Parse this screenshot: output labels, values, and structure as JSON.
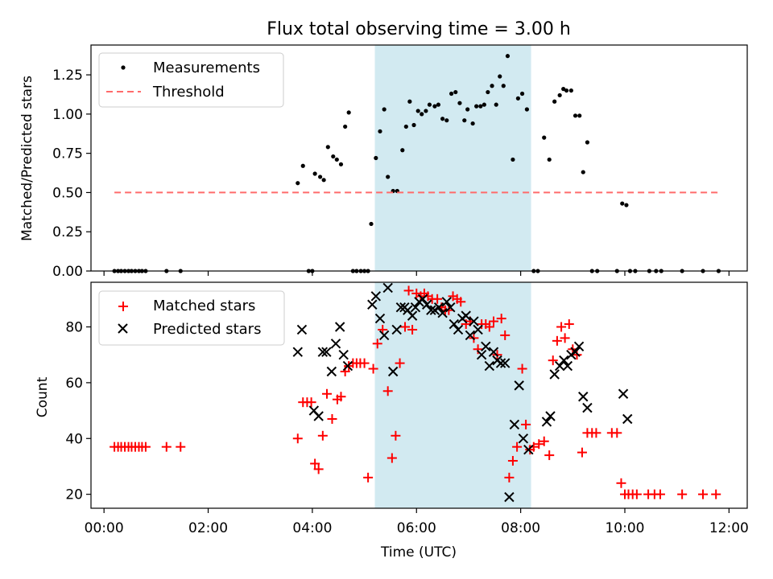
{
  "chart_data": [
    {
      "type": "scatter",
      "title": "Flux total observing time = 3.00 h",
      "xlabel": "",
      "ylabel": "Matched/Predicted stars",
      "xlim": [
        -0.25,
        12.35
      ],
      "ylim": [
        0,
        1.44
      ],
      "yticks": [
        0,
        0.25,
        0.5,
        0.75,
        1.0,
        1.25
      ],
      "ytick_labels": [
        "0.00",
        "0.25",
        "0.50",
        "0.75",
        "1.00",
        "1.25"
      ],
      "xticks": [
        0,
        2,
        4,
        6,
        8,
        10,
        12
      ],
      "shaded_span": [
        5.2,
        8.2
      ],
      "shaded_color": "#add8e6",
      "legend": {
        "location": "top-left",
        "entries": [
          "Measurements",
          "Threshold"
        ]
      },
      "series": [
        {
          "name": "Measurements",
          "marker": "dot",
          "color": "#000000",
          "points": [
            [
              0.2,
              0
            ],
            [
              0.27,
              0
            ],
            [
              0.33,
              0
            ],
            [
              0.4,
              0
            ],
            [
              0.47,
              0
            ],
            [
              0.53,
              0
            ],
            [
              0.6,
              0
            ],
            [
              0.67,
              0
            ],
            [
              0.73,
              0
            ],
            [
              0.8,
              0
            ],
            [
              1.2,
              0
            ],
            [
              1.47,
              0
            ],
            [
              3.72,
              0.56
            ],
            [
              3.82,
              0.67
            ],
            [
              3.93,
              0
            ],
            [
              4.0,
              0
            ],
            [
              4.05,
              0.62
            ],
            [
              4.15,
              0.6
            ],
            [
              4.22,
              0.58
            ],
            [
              4.3,
              0.79
            ],
            [
              4.4,
              0.73
            ],
            [
              4.47,
              0.71
            ],
            [
              4.55,
              0.68
            ],
            [
              4.63,
              0.92
            ],
            [
              4.7,
              1.01
            ],
            [
              4.78,
              0
            ],
            [
              4.85,
              0
            ],
            [
              4.93,
              0
            ],
            [
              5.0,
              0
            ],
            [
              5.07,
              0
            ],
            [
              5.13,
              0.3
            ],
            [
              5.22,
              0.72
            ],
            [
              5.3,
              0.89
            ],
            [
              5.38,
              1.03
            ],
            [
              5.45,
              0.6
            ],
            [
              5.55,
              0.51
            ],
            [
              5.63,
              0.51
            ],
            [
              5.73,
              0.77
            ],
            [
              5.8,
              0.92
            ],
            [
              5.87,
              1.08
            ],
            [
              5.95,
              0.93
            ],
            [
              6.03,
              1.02
            ],
            [
              6.1,
              1.0
            ],
            [
              6.18,
              1.02
            ],
            [
              6.25,
              1.06
            ],
            [
              6.35,
              1.05
            ],
            [
              6.42,
              1.06
            ],
            [
              6.5,
              0.97
            ],
            [
              6.58,
              0.96
            ],
            [
              6.67,
              1.13
            ],
            [
              6.75,
              1.14
            ],
            [
              6.83,
              1.07
            ],
            [
              6.92,
              0.96
            ],
            [
              6.98,
              1.03
            ],
            [
              7.08,
              0.94
            ],
            [
              7.15,
              1.05
            ],
            [
              7.23,
              1.05
            ],
            [
              7.3,
              1.06
            ],
            [
              7.37,
              1.14
            ],
            [
              7.45,
              1.18
            ],
            [
              7.53,
              1.06
            ],
            [
              7.6,
              1.24
            ],
            [
              7.67,
              1.18
            ],
            [
              7.75,
              1.37
            ],
            [
              7.85,
              0.71
            ],
            [
              7.95,
              1.1
            ],
            [
              8.03,
              1.13
            ],
            [
              8.12,
              1.03
            ],
            [
              8.25,
              0
            ],
            [
              8.33,
              0
            ],
            [
              8.45,
              0.85
            ],
            [
              8.55,
              0.71
            ],
            [
              8.65,
              1.08
            ],
            [
              8.75,
              1.12
            ],
            [
              8.82,
              1.16
            ],
            [
              8.88,
              1.15
            ],
            [
              8.97,
              1.15
            ],
            [
              9.05,
              0.99
            ],
            [
              9.13,
              0.99
            ],
            [
              9.2,
              0.63
            ],
            [
              9.28,
              0.82
            ],
            [
              9.37,
              0
            ],
            [
              9.47,
              0
            ],
            [
              9.85,
              0
            ],
            [
              9.95,
              0.43
            ],
            [
              10.03,
              0.42
            ],
            [
              10.1,
              0
            ],
            [
              10.2,
              0
            ],
            [
              10.47,
              0
            ],
            [
              10.6,
              0
            ],
            [
              10.7,
              0
            ],
            [
              11.1,
              0
            ],
            [
              11.5,
              0
            ],
            [
              11.8,
              0
            ]
          ]
        },
        {
          "name": "Threshold",
          "style": "dashed",
          "color": "#ff6b6b",
          "x": [
            0.2,
            11.8
          ],
          "y": [
            0.5,
            0.5
          ]
        }
      ]
    },
    {
      "type": "scatter",
      "title": "",
      "xlabel": "Time (UTC)",
      "ylabel": "Count",
      "xlim": [
        -0.25,
        12.35
      ],
      "ylim": [
        15,
        96
      ],
      "yticks": [
        20,
        40,
        60,
        80
      ],
      "ytick_labels": [
        "20",
        "40",
        "60",
        "80"
      ],
      "xticks": [
        0,
        2,
        4,
        6,
        8,
        10,
        12
      ],
      "xtick_labels": [
        "00:00",
        "02:00",
        "04:00",
        "06:00",
        "08:00",
        "10:00",
        "12:00"
      ],
      "shaded_span": [
        5.2,
        8.2
      ],
      "shaded_color": "#add8e6",
      "legend": {
        "location": "top-left",
        "entries": [
          "Matched stars",
          "Predicted stars"
        ]
      },
      "series": [
        {
          "name": "Matched stars",
          "marker": "plus",
          "color": "#ff0000",
          "points": [
            [
              0.2,
              37
            ],
            [
              0.27,
              37
            ],
            [
              0.33,
              37
            ],
            [
              0.4,
              37
            ],
            [
              0.47,
              37
            ],
            [
              0.53,
              37
            ],
            [
              0.6,
              37
            ],
            [
              0.67,
              37
            ],
            [
              0.73,
              37
            ],
            [
              0.8,
              37
            ],
            [
              1.2,
              37
            ],
            [
              1.47,
              37
            ],
            [
              3.72,
              40
            ],
            [
              3.82,
              53
            ],
            [
              3.9,
              53
            ],
            [
              3.98,
              53
            ],
            [
              4.05,
              31
            ],
            [
              4.12,
              29
            ],
            [
              4.2,
              41
            ],
            [
              4.28,
              56
            ],
            [
              4.38,
              47
            ],
            [
              4.48,
              54
            ],
            [
              4.55,
              55
            ],
            [
              4.63,
              64
            ],
            [
              4.7,
              66
            ],
            [
              4.78,
              67
            ],
            [
              4.85,
              67
            ],
            [
              4.92,
              67
            ],
            [
              5.0,
              67
            ],
            [
              5.07,
              26
            ],
            [
              5.17,
              65
            ],
            [
              5.25,
              74
            ],
            [
              5.35,
              79
            ],
            [
              5.45,
              57
            ],
            [
              5.53,
              33
            ],
            [
              5.6,
              41
            ],
            [
              5.68,
              67
            ],
            [
              5.78,
              80
            ],
            [
              5.85,
              93
            ],
            [
              5.92,
              79
            ],
            [
              6.0,
              92
            ],
            [
              6.08,
              91
            ],
            [
              6.15,
              92
            ],
            [
              6.22,
              91
            ],
            [
              6.3,
              90
            ],
            [
              6.4,
              90
            ],
            [
              6.48,
              87
            ],
            [
              6.55,
              86
            ],
            [
              6.62,
              86
            ],
            [
              6.7,
              91
            ],
            [
              6.78,
              90
            ],
            [
              6.85,
              89
            ],
            [
              6.95,
              81
            ],
            [
              7.03,
              82
            ],
            [
              7.1,
              76
            ],
            [
              7.18,
              72
            ],
            [
              7.25,
              81
            ],
            [
              7.33,
              81
            ],
            [
              7.4,
              80
            ],
            [
              7.48,
              82
            ],
            [
              7.55,
              70
            ],
            [
              7.63,
              83
            ],
            [
              7.7,
              77
            ],
            [
              7.78,
              26
            ],
            [
              7.85,
              32
            ],
            [
              7.93,
              37
            ],
            [
              8.03,
              65
            ],
            [
              8.1,
              45
            ],
            [
              8.18,
              36
            ],
            [
              8.25,
              37
            ],
            [
              8.35,
              38
            ],
            [
              8.45,
              39
            ],
            [
              8.55,
              34
            ],
            [
              8.62,
              68
            ],
            [
              8.7,
              75
            ],
            [
              8.78,
              80
            ],
            [
              8.85,
              76
            ],
            [
              8.93,
              81
            ],
            [
              9.0,
              72
            ],
            [
              9.08,
              70
            ],
            [
              9.18,
              35
            ],
            [
              9.28,
              42
            ],
            [
              9.37,
              42
            ],
            [
              9.45,
              42
            ],
            [
              9.75,
              42
            ],
            [
              9.85,
              42
            ],
            [
              9.93,
              24
            ],
            [
              10.0,
              20
            ],
            [
              10.07,
              20
            ],
            [
              10.15,
              20
            ],
            [
              10.23,
              20
            ],
            [
              10.45,
              20
            ],
            [
              10.57,
              20
            ],
            [
              10.68,
              20
            ],
            [
              11.1,
              20
            ],
            [
              11.5,
              20
            ],
            [
              11.75,
              20
            ]
          ]
        },
        {
          "name": "Predicted stars",
          "marker": "x",
          "color": "#000000",
          "points": [
            [
              3.72,
              71
            ],
            [
              3.8,
              79
            ],
            [
              4.03,
              50
            ],
            [
              4.12,
              48
            ],
            [
              4.2,
              71
            ],
            [
              4.27,
              71
            ],
            [
              4.37,
              64
            ],
            [
              4.45,
              74
            ],
            [
              4.53,
              80
            ],
            [
              4.6,
              70
            ],
            [
              4.68,
              66
            ],
            [
              5.15,
              88
            ],
            [
              5.22,
              91
            ],
            [
              5.3,
              83
            ],
            [
              5.38,
              77
            ],
            [
              5.45,
              94
            ],
            [
              5.55,
              64
            ],
            [
              5.62,
              79
            ],
            [
              5.7,
              87
            ],
            [
              5.77,
              87
            ],
            [
              5.83,
              86
            ],
            [
              5.92,
              84
            ],
            [
              5.98,
              87
            ],
            [
              6.05,
              89
            ],
            [
              6.12,
              90
            ],
            [
              6.2,
              88
            ],
            [
              6.28,
              86
            ],
            [
              6.35,
              86
            ],
            [
              6.43,
              87
            ],
            [
              6.5,
              85
            ],
            [
              6.58,
              89
            ],
            [
              6.65,
              87
            ],
            [
              6.72,
              81
            ],
            [
              6.8,
              79
            ],
            [
              6.88,
              83
            ],
            [
              6.95,
              84
            ],
            [
              7.03,
              77
            ],
            [
              7.1,
              82
            ],
            [
              7.18,
              79
            ],
            [
              7.25,
              70
            ],
            [
              7.33,
              73
            ],
            [
              7.4,
              66
            ],
            [
              7.48,
              71
            ],
            [
              7.55,
              68
            ],
            [
              7.62,
              67
            ],
            [
              7.7,
              67
            ],
            [
              7.78,
              19
            ],
            [
              7.88,
              45
            ],
            [
              7.97,
              59
            ],
            [
              8.05,
              40
            ],
            [
              8.15,
              36
            ],
            [
              8.5,
              46
            ],
            [
              8.57,
              48
            ],
            [
              8.65,
              63
            ],
            [
              8.75,
              66
            ],
            [
              8.83,
              68
            ],
            [
              8.9,
              66
            ],
            [
              8.97,
              70
            ],
            [
              9.05,
              71
            ],
            [
              9.12,
              73
            ],
            [
              9.2,
              55
            ],
            [
              9.28,
              51
            ],
            [
              9.97,
              56
            ],
            [
              10.05,
              47
            ]
          ]
        }
      ]
    }
  ]
}
